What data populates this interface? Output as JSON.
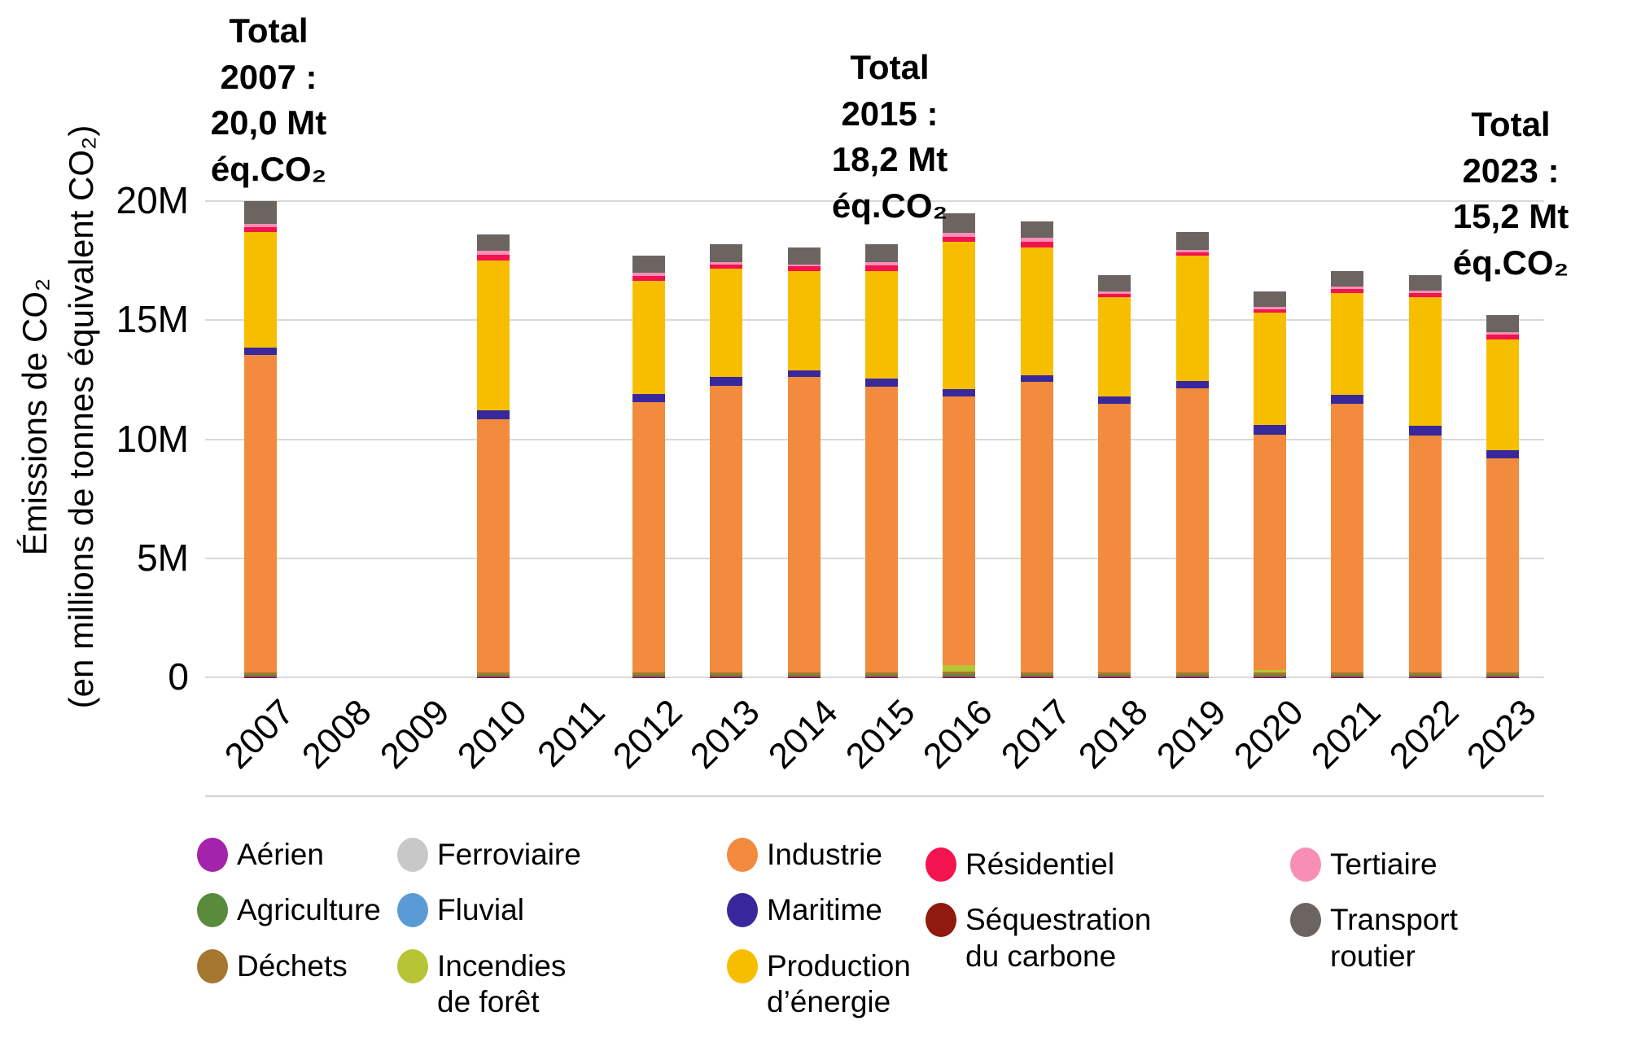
{
  "chart_data": {
    "type": "bar",
    "stacked": true,
    "title": "",
    "ylabel_line1": "Émissions de CO₂",
    "ylabel_line2": "(en millions de tonnes équivalent CO₂)",
    "unit": "Mt éq.CO₂",
    "ylim": [
      0,
      20
    ],
    "grid": "horizontal",
    "legend_position": "bottom",
    "y_ticks": [
      {
        "value": 0,
        "label": "0"
      },
      {
        "value": 5,
        "label": "5M"
      },
      {
        "value": 10,
        "label": "10M"
      },
      {
        "value": 15,
        "label": "15M"
      },
      {
        "value": 20,
        "label": "20M"
      }
    ],
    "categories": [
      "2007",
      "2008",
      "2009",
      "2010",
      "2011",
      "2012",
      "2013",
      "2014",
      "2015",
      "2016",
      "2017",
      "2018",
      "2019",
      "2020",
      "2021",
      "2022",
      "2023"
    ],
    "series": [
      {
        "key": "aerien",
        "label": "Aérien",
        "color": "#a423ac",
        "values": [
          0.05,
          null,
          null,
          0.05,
          null,
          0.05,
          0.05,
          0.05,
          0.05,
          0.05,
          0.05,
          0.05,
          0.05,
          0.05,
          0.05,
          0.05,
          0.05
        ]
      },
      {
        "key": "agriculture",
        "label": "Agriculture",
        "color": "#5a8a3b",
        "values": [
          0.05,
          null,
          null,
          0.05,
          null,
          0.05,
          0.05,
          0.05,
          0.05,
          0.1,
          0.05,
          0.05,
          0.05,
          0.05,
          0.05,
          0.05,
          0.05
        ]
      },
      {
        "key": "dechets",
        "label": "Déchets",
        "color": "#a5772f",
        "values": [
          0.1,
          null,
          null,
          0.1,
          null,
          0.1,
          0.1,
          0.1,
          0.1,
          0.1,
          0.1,
          0.1,
          0.1,
          0.1,
          0.1,
          0.1,
          0.1
        ]
      },
      {
        "key": "ferroviaire",
        "label": "Ferroviaire",
        "color": "#c8c8c8",
        "values": [
          0,
          null,
          null,
          0,
          null,
          0,
          0,
          0,
          0,
          0,
          0,
          0,
          0,
          0,
          0,
          0,
          0
        ]
      },
      {
        "key": "fluvial",
        "label": "Fluvial",
        "color": "#5b9bd5",
        "values": [
          0,
          null,
          null,
          0,
          null,
          0,
          0,
          0,
          0,
          0,
          0,
          0,
          0,
          0,
          0,
          0,
          0
        ]
      },
      {
        "key": "incendies",
        "label": "Incendies de forêt",
        "color": "#b7c435",
        "values": [
          0,
          null,
          null,
          0,
          null,
          0,
          0,
          0,
          0,
          0.25,
          0,
          0,
          0,
          0.1,
          0,
          0,
          0
        ]
      },
      {
        "key": "industrie",
        "label": "Industrie",
        "color": "#f28b3d",
        "values": [
          13.35,
          null,
          null,
          10.65,
          null,
          11.35,
          12.05,
          12.4,
          12.0,
          11.3,
          12.2,
          11.3,
          11.95,
          9.9,
          11.3,
          9.95,
          9.0
        ]
      },
      {
        "key": "maritime",
        "label": "Maritime",
        "color": "#38289c",
        "values": [
          0.3,
          null,
          null,
          0.35,
          null,
          0.35,
          0.35,
          0.3,
          0.35,
          0.3,
          0.3,
          0.3,
          0.3,
          0.4,
          0.35,
          0.4,
          0.35
        ]
      },
      {
        "key": "production",
        "label": "Production d’énergie",
        "color": "#f7be00",
        "values": [
          4.85,
          null,
          null,
          6.3,
          null,
          4.75,
          4.55,
          4.15,
          4.5,
          6.2,
          5.35,
          4.15,
          5.25,
          4.7,
          4.3,
          5.4,
          4.65
        ]
      },
      {
        "key": "residentiel",
        "label": "Résidentiel",
        "color": "#f2134f",
        "values": [
          0.2,
          null,
          null,
          0.25,
          null,
          0.2,
          0.2,
          0.2,
          0.25,
          0.2,
          0.25,
          0.15,
          0.15,
          0.15,
          0.15,
          0.2,
          0.2
        ]
      },
      {
        "key": "tertiaire",
        "label": "Tertiaire",
        "color": "#f78fb5",
        "values": [
          0.15,
          null,
          null,
          0.15,
          null,
          0.15,
          0.1,
          0.1,
          0.15,
          0.15,
          0.15,
          0.1,
          0.1,
          0.1,
          0.1,
          0.1,
          0.1
        ]
      },
      {
        "key": "transport",
        "label": "Transport routier",
        "color": "#6b6460",
        "values": [
          0.95,
          null,
          null,
          0.7,
          null,
          0.7,
          0.75,
          0.7,
          0.75,
          0.85,
          0.7,
          0.7,
          0.75,
          0.65,
          0.65,
          0.65,
          0.7
        ]
      },
      {
        "key": "sequestration",
        "label": "Séquestration du carbone",
        "color": "#8f1a0d",
        "values": [
          -0.05,
          null,
          null,
          -0.05,
          null,
          -0.05,
          -0.05,
          -0.05,
          -0.05,
          -0.05,
          -0.05,
          -0.05,
          -0.05,
          -0.05,
          -0.05,
          -0.05,
          -0.05
        ]
      }
    ],
    "annotations": [
      {
        "year": "2007",
        "lines": [
          "Total",
          "2007 :",
          "20,0 Mt",
          "éq.CO₂"
        ]
      },
      {
        "year": "2015",
        "lines": [
          "Total",
          "2015 :",
          "18,2 Mt",
          "éq.CO₂"
        ]
      },
      {
        "year": "2023",
        "lines": [
          "Total",
          "2023 :",
          "15,2 Mt",
          "éq.CO₂"
        ]
      }
    ],
    "totals_visible": {
      "2007": "20,0 Mt éq.CO₂",
      "2015": "18,2 Mt éq.CO₂",
      "2023": "15,2 Mt éq.CO₂"
    }
  },
  "legend": {
    "columns": [
      [
        {
          "key": "aerien",
          "label": "Aérien"
        },
        {
          "key": "agriculture",
          "label": "Agriculture"
        },
        {
          "key": "dechets",
          "label": "Déchets"
        }
      ],
      [
        {
          "key": "ferroviaire",
          "label": "Ferroviaire"
        },
        {
          "key": "fluvial",
          "label": "Fluvial"
        },
        {
          "key": "incendies",
          "label": "Incendies\nde forêt"
        }
      ],
      [
        {
          "key": "industrie",
          "label": "Industrie"
        },
        {
          "key": "maritime",
          "label": "Maritime"
        },
        {
          "key": "production",
          "label": "Production\nd’énergie"
        }
      ],
      [
        {
          "key": "residentiel",
          "label": "Résidentiel"
        },
        {
          "key": "sequestration",
          "label": "Séquestration\ndu carbone"
        }
      ],
      [
        {
          "key": "tertiaire",
          "label": "Tertiaire"
        },
        {
          "key": "transport",
          "label": "Transport\nroutier"
        }
      ]
    ]
  }
}
